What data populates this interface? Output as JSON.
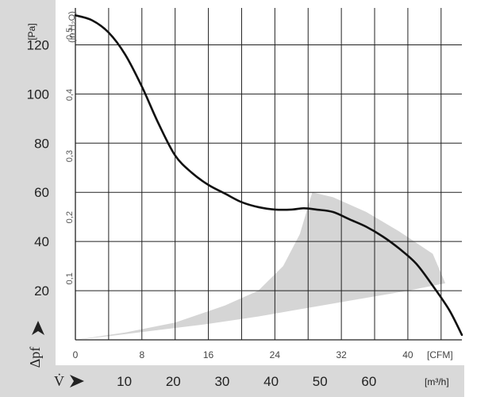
{
  "chart_data": {
    "type": "line",
    "pa_unit": "[Pa]",
    "h2o_unit": "(in H₂O)",
    "cfm_unit": "[CFM]",
    "m3h_unit": "[m³/h]",
    "y_symbol": "Δpf",
    "x_symbol": "V̇",
    "ylim_pa": [
      0,
      135
    ],
    "xlim_cfm": [
      0,
      46.5
    ],
    "pa_ticks": [
      "20",
      "40",
      "60",
      "80",
      "100",
      "120"
    ],
    "h2o_ticks": [
      "0,1",
      "0,2",
      "0,3",
      "0,4",
      "0,5"
    ],
    "cfm_ticks": [
      "0",
      "8",
      "16",
      "24",
      "32",
      "40"
    ],
    "m3h_ticks": [
      "10",
      "20",
      "30",
      "40",
      "50",
      "60"
    ],
    "grid": true,
    "series": [
      {
        "x": [
          0,
          2,
          4,
          6,
          8,
          10,
          12,
          14,
          16,
          18,
          20,
          22,
          24,
          26,
          27.5,
          29,
          31,
          33,
          35,
          37,
          39,
          41,
          43,
          45,
          46.5
        ],
        "y": [
          132,
          130,
          125,
          116,
          103,
          88,
          75,
          68,
          63,
          59.5,
          56,
          54,
          53,
          53,
          53.5,
          53,
          52,
          49,
          46,
          42,
          37,
          31,
          22,
          12,
          2
        ]
      }
    ],
    "shaded_region": {
      "x": [
        0,
        6,
        12,
        18,
        22,
        25,
        27,
        28.5,
        31,
        35,
        39,
        43,
        44.5,
        40,
        34,
        28,
        22,
        16,
        10,
        4,
        0
      ],
      "y": [
        0,
        3,
        7,
        14,
        20,
        30,
        43,
        60,
        58,
        52,
        44,
        35,
        23,
        20,
        16.5,
        13,
        9.5,
        6.5,
        4,
        1.5,
        0
      ]
    },
    "colors": {
      "curve": "#111111",
      "shaded": "#d5d5d5",
      "side_band": "#d9d9d9",
      "grid": "#222222"
    }
  }
}
